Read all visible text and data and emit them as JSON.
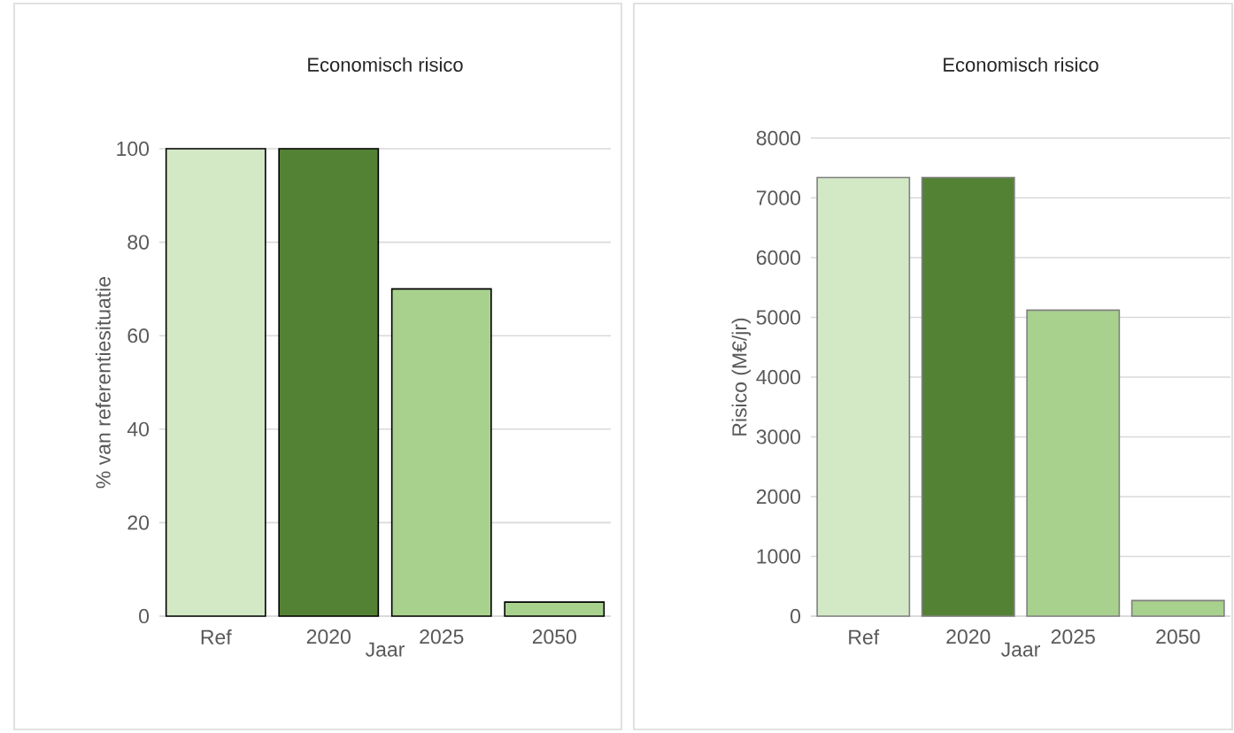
{
  "chart_data": [
    {
      "type": "bar",
      "title": "Economisch risico",
      "xlabel": "Jaar",
      "ylabel": "% van referentiesituatie",
      "categories": [
        "Ref",
        "2020",
        "2025",
        "2050"
      ],
      "values": [
        100,
        100,
        70,
        3
      ],
      "colors": [
        "#d3e8c5",
        "#548235",
        "#a9d18e",
        "#a9d18e"
      ],
      "ylim": [
        0,
        100
      ],
      "yticks": [
        0,
        20,
        40,
        60,
        80,
        100
      ],
      "grid": "y"
    },
    {
      "type": "bar",
      "title": "Economisch risico",
      "xlabel": "Jaar",
      "ylabel": "Risico (M€/jr)",
      "categories": [
        "Ref",
        "2020",
        "2025",
        "2050"
      ],
      "values": [
        7340,
        7340,
        5120,
        260
      ],
      "colors": [
        "#d3e8c5",
        "#548235",
        "#a9d18e",
        "#a9d18e"
      ],
      "ylim": [
        0,
        8000
      ],
      "yticks": [
        0,
        1000,
        2000,
        3000,
        4000,
        5000,
        6000,
        7000,
        8000
      ],
      "grid": "y"
    }
  ]
}
